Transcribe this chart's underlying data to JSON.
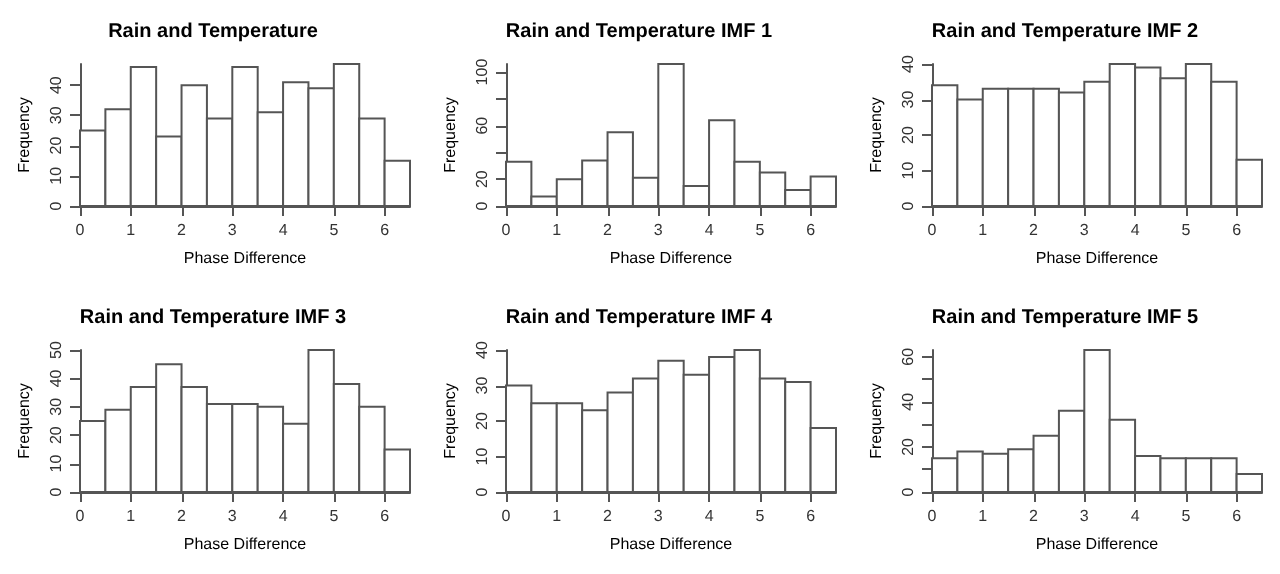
{
  "chart_data": [
    {
      "type": "histogram",
      "title": "Rain and Temperature",
      "xlabel": "Phase Difference",
      "ylabel": "Frequency",
      "color": "#ffffff",
      "bins": [
        0,
        0.5,
        1,
        1.5,
        2,
        2.5,
        3,
        3.5,
        4,
        4.5,
        5,
        5.5,
        6,
        6.5
      ],
      "values": [
        25,
        32,
        46,
        23,
        40,
        29,
        46,
        31,
        41,
        39,
        47,
        29,
        15
      ],
      "xlim": [
        0,
        6.5
      ],
      "xticks": [
        0,
        1,
        2,
        3,
        4,
        5,
        6
      ],
      "ylim": [
        0,
        47
      ],
      "yticks": [
        0,
        10,
        20,
        30,
        40
      ]
    },
    {
      "type": "histogram",
      "title": "Rain and Temperature IMF 1",
      "xlabel": "Phase Difference",
      "ylabel": "Frequency",
      "color": "#ffffff",
      "bins": [
        0,
        0.5,
        1,
        1.5,
        2,
        2.5,
        3,
        3.5,
        4,
        4.5,
        5,
        5.5,
        6,
        6.5
      ],
      "values": [
        33,
        7,
        20,
        34,
        55,
        21,
        106,
        15,
        64,
        33,
        25,
        12,
        22
      ],
      "xlim": [
        0,
        6.5
      ],
      "xticks": [
        0,
        1,
        2,
        3,
        4,
        5,
        6
      ],
      "ylim": [
        0,
        106
      ],
      "yticks": [
        0,
        20,
        {
          "value": 40,
          "label": null
        },
        60,
        {
          "value": 80,
          "label": null
        },
        100
      ]
    },
    {
      "type": "histogram",
      "title": "Rain and Temperature IMF 2",
      "xlabel": "Phase Difference",
      "ylabel": "Frequency",
      "color": "#ffffff",
      "bins": [
        0,
        0.5,
        1,
        1.5,
        2,
        2.5,
        3,
        3.5,
        4,
        4.5,
        5,
        5.5,
        6,
        6.5
      ],
      "values": [
        34,
        30,
        33,
        33,
        33,
        32,
        35,
        40,
        39,
        36,
        40,
        35,
        13
      ],
      "xlim": [
        0,
        6.5
      ],
      "xticks": [
        0,
        1,
        2,
        3,
        4,
        5,
        6
      ],
      "ylim": [
        0,
        40
      ],
      "yticks": [
        0,
        10,
        20,
        30,
        40
      ]
    },
    {
      "type": "histogram",
      "title": "Rain and Temperature IMF 3",
      "xlabel": "Phase Difference",
      "ylabel": "Frequency",
      "color": "#ffffff",
      "bins": [
        0,
        0.5,
        1,
        1.5,
        2,
        2.5,
        3,
        3.5,
        4,
        4.5,
        5,
        5.5,
        6,
        6.5
      ],
      "values": [
        25,
        29,
        37,
        45,
        37,
        31,
        31,
        30,
        24,
        50,
        38,
        30,
        15
      ],
      "xlim": [
        0,
        6.5
      ],
      "xticks": [
        0,
        1,
        2,
        3,
        4,
        5,
        6
      ],
      "ylim": [
        0,
        50
      ],
      "yticks": [
        0,
        10,
        20,
        30,
        40,
        50
      ]
    },
    {
      "type": "histogram",
      "title": "Rain and Temperature IMF 4",
      "xlabel": "Phase Difference",
      "ylabel": "Frequency",
      "color": "#ffffff",
      "bins": [
        0,
        0.5,
        1,
        1.5,
        2,
        2.5,
        3,
        3.5,
        4,
        4.5,
        5,
        5.5,
        6,
        6.5
      ],
      "values": [
        30,
        25,
        25,
        23,
        28,
        32,
        37,
        33,
        38,
        40,
        32,
        31,
        18
      ],
      "xlim": [
        0,
        6.5
      ],
      "xticks": [
        0,
        1,
        2,
        3,
        4,
        5,
        6
      ],
      "ylim": [
        0,
        40
      ],
      "yticks": [
        0,
        10,
        20,
        30,
        40
      ]
    },
    {
      "type": "histogram",
      "title": "Rain and Temperature IMF 5",
      "xlabel": "Phase Difference",
      "ylabel": "Frequency",
      "color": "#ffffff",
      "bins": [
        0,
        0.5,
        1,
        1.5,
        2,
        2.5,
        3,
        3.5,
        4,
        4.5,
        5,
        5.5,
        6,
        6.5
      ],
      "values": [
        15,
        18,
        17,
        19,
        25,
        36,
        63,
        32,
        16,
        15,
        15,
        15,
        8
      ],
      "xlim": [
        0,
        6.5
      ],
      "xticks": [
        0,
        1,
        2,
        3,
        4,
        5,
        6
      ],
      "ylim": [
        0,
        63
      ],
      "yticks": [
        0,
        {
          "value": 10,
          "label": null
        },
        20,
        {
          "value": 30,
          "label": null
        },
        40,
        {
          "value": 50,
          "label": null
        },
        60
      ]
    }
  ]
}
